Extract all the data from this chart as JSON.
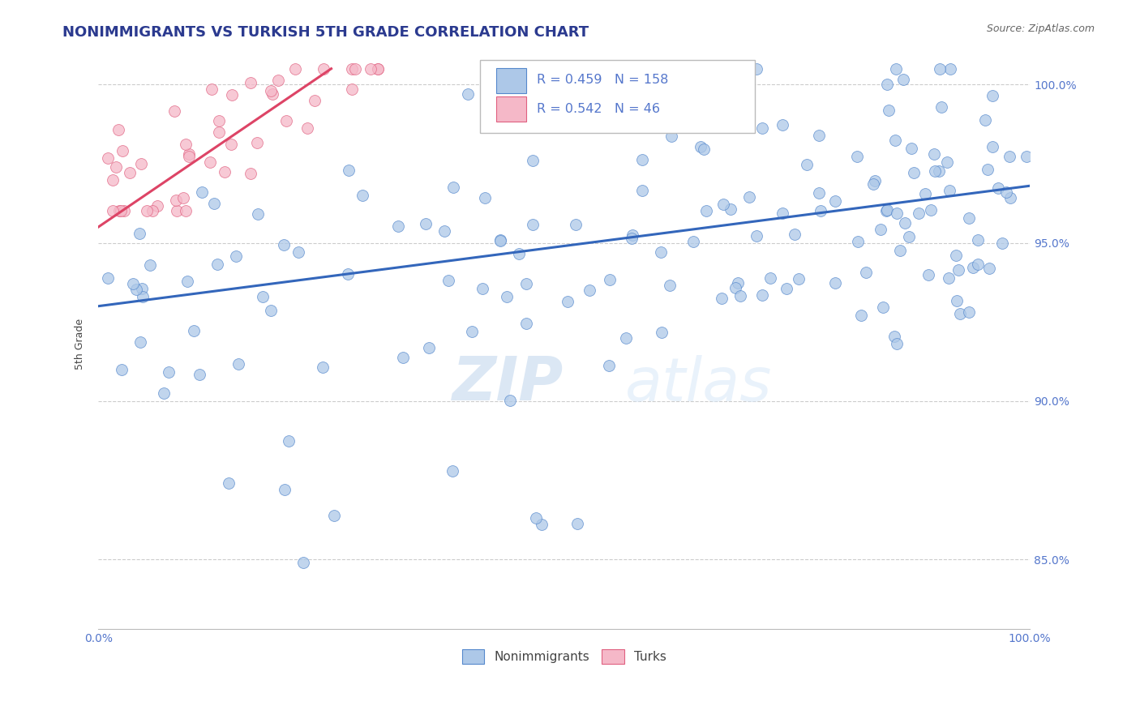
{
  "title": "NONIMMIGRANTS VS TURKISH 5TH GRADE CORRELATION CHART",
  "source_text": "Source: ZipAtlas.com",
  "ylabel": "5th Grade",
  "legend_labels": [
    "Nonimmigrants",
    "Turks"
  ],
  "R_blue": 0.459,
  "N_blue": 158,
  "R_pink": 0.542,
  "N_pink": 46,
  "blue_color": "#adc8e8",
  "pink_color": "#f5b8c8",
  "blue_edge_color": "#5588cc",
  "pink_edge_color": "#e06080",
  "blue_line_color": "#3366bb",
  "pink_line_color": "#dd4466",
  "title_color": "#2b3a8f",
  "axis_label_color": "#444444",
  "tick_color": "#5577cc",
  "watermark_color": "#ccddf0",
  "background_color": "#ffffff",
  "blue_trendline": {
    "x_start": 0.0,
    "y_start": 0.93,
    "x_end": 1.0,
    "y_end": 0.968
  },
  "pink_trendline": {
    "x_start": 0.0,
    "y_start": 0.955,
    "x_end": 0.25,
    "y_end": 1.005
  },
  "xlim": [
    0.0,
    1.0
  ],
  "ylim": [
    0.828,
    1.008
  ],
  "yticks": [
    0.85,
    0.9,
    0.95,
    1.0
  ],
  "ytick_labels": [
    "85.0%",
    "90.0%",
    "95.0%",
    "100.0%"
  ],
  "xticks": [
    0.0,
    1.0
  ],
  "xtick_labels": [
    "0.0%",
    "100.0%"
  ],
  "grid_color": "#cccccc",
  "grid_style": "--",
  "title_fontsize": 13,
  "label_fontsize": 9,
  "tick_fontsize": 10,
  "source_fontsize": 9
}
